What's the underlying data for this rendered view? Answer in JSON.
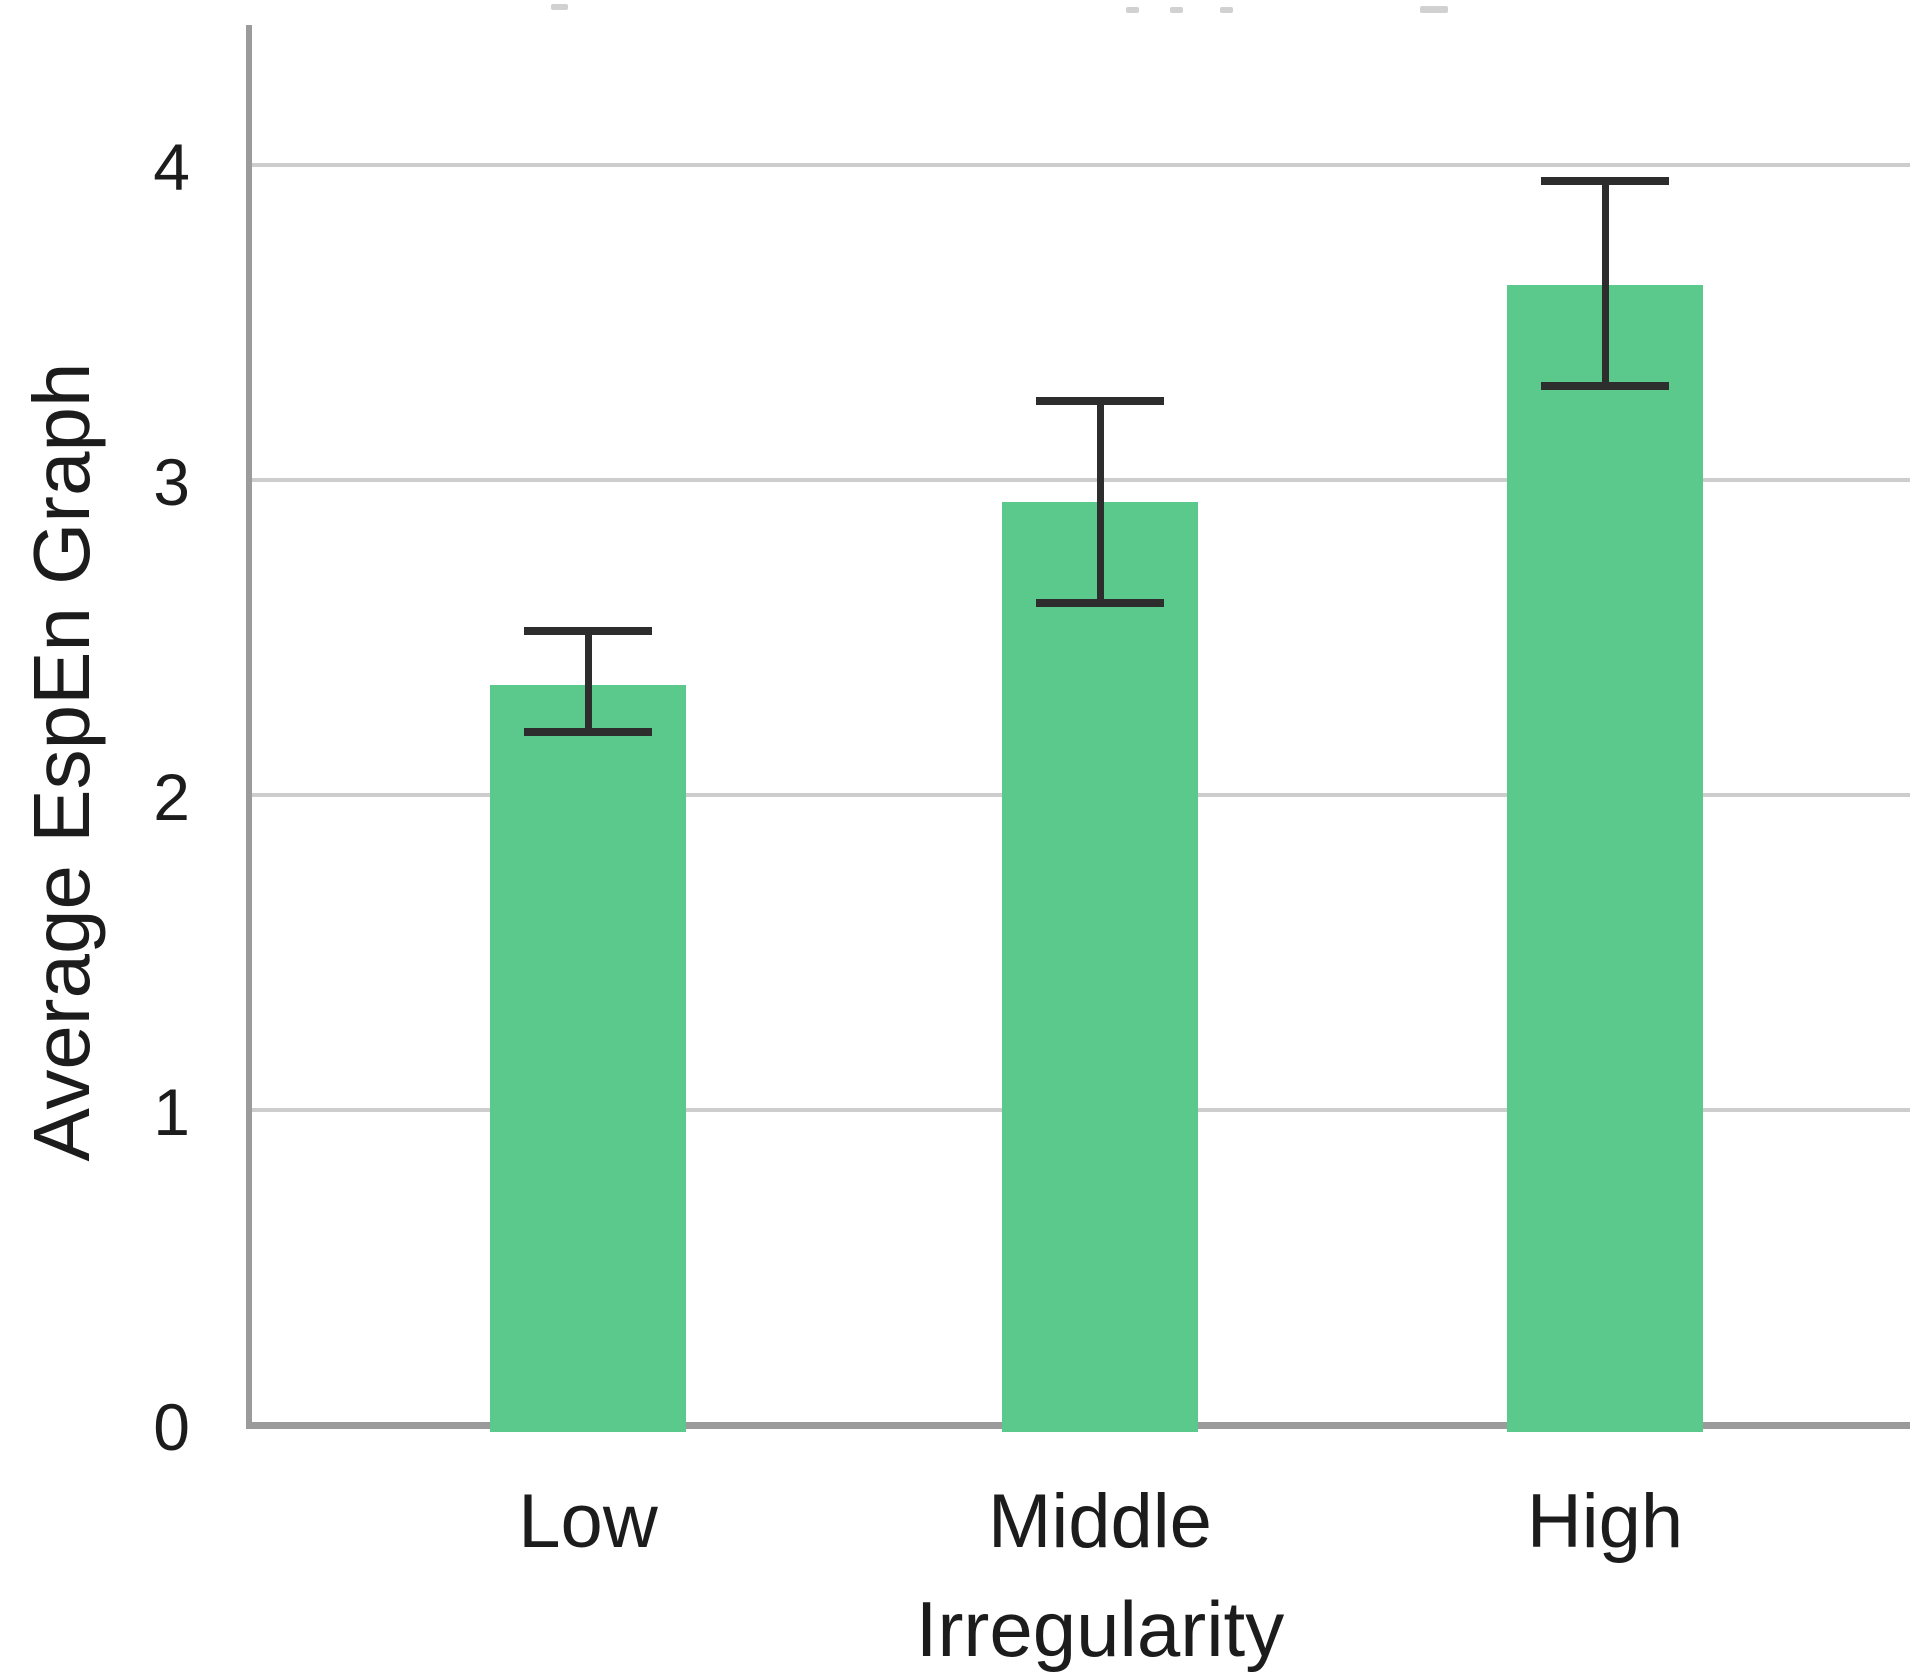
{
  "chart_data": {
    "type": "bar",
    "title": "",
    "categories": [
      "Low",
      "Middle",
      "High"
    ],
    "values": [
      2.35,
      2.93,
      3.62
    ],
    "error_upper": [
      2.52,
      3.25,
      3.95
    ],
    "error_lower": [
      2.2,
      2.61,
      3.3
    ],
    "xlabel": "Irregularity",
    "ylabel": "Average EspEn Graph",
    "y_ticks": [
      0,
      1,
      2,
      3,
      4
    ],
    "ylim": [
      0,
      4.45
    ],
    "grid": true,
    "legend_position": "none",
    "bar_color": "#5cc98c",
    "error_color": "#2d2d2d",
    "axis_color": "#9b9b9b",
    "gridline_color": "#cdcdcd",
    "text_color": "#1c1c1c"
  }
}
